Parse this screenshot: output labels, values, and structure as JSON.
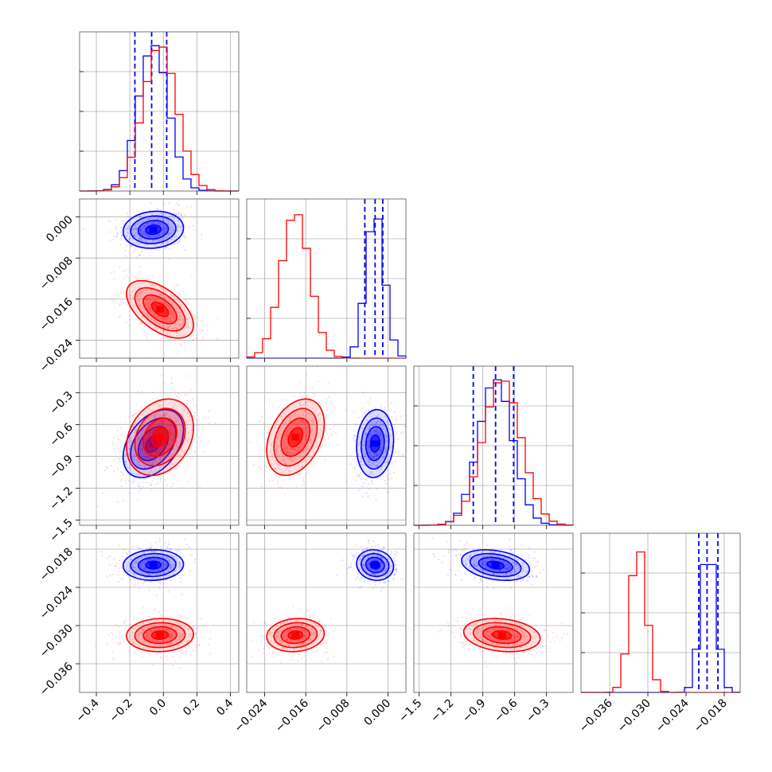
{
  "chart_data": {
    "type": "corner",
    "series": [
      {
        "name": "",
        "color": "#0000ff",
        "quantile_lines": true,
        "centers": [
          -0.06,
          -0.0025,
          -0.78,
          -0.0205
        ],
        "sigmas": [
          0.09,
          0.0018,
          0.16,
          0.0012
        ],
        "correlations": {
          "1-0": 0.1,
          "2-0": 0.4,
          "2-1": 0.1,
          "3-0": 0.05,
          "3-1": -0.1,
          "3-2": -0.3
        },
        "quantiles": [
          [
            -0.17,
            -0.07,
            0.02
          ],
          [
            -0.0045,
            -0.0025,
            -0.001
          ],
          [
            -0.99,
            -0.78,
            -0.61
          ],
          [
            -0.022,
            -0.0207,
            -0.019
          ]
        ]
      },
      {
        "name": "",
        "color": "#ff0000",
        "quantile_lines": false,
        "centers": [
          -0.02,
          -0.018,
          -0.72,
          -0.0315
        ],
        "sigmas": [
          0.1,
          0.0028,
          0.18,
          0.0013
        ],
        "correlations": {
          "1-0": -0.55,
          "2-0": 0.25,
          "2-1": 0.35,
          "3-0": 0.05,
          "3-1": 0.1,
          "3-2": -0.2
        }
      }
    ],
    "params": [
      {
        "range": [
          -0.5,
          0.45
        ],
        "ticks": [
          -0.4,
          -0.2,
          0.0,
          0.2,
          0.4
        ],
        "tick_labels": [
          "−0.4",
          "−0.2",
          "0.0",
          "0.2",
          "0.4"
        ]
      },
      {
        "range": [
          -0.0275,
          0.0035
        ],
        "ticks": [
          -0.024,
          -0.016,
          -0.008,
          0.0
        ],
        "tick_labels": [
          "−0.024",
          "−0.016",
          "−0.008",
          "0.000"
        ]
      },
      {
        "range": [
          -1.55,
          -0.05
        ],
        "ticks": [
          -1.5,
          -1.2,
          -0.9,
          -0.6,
          -0.3
        ],
        "tick_labels": [
          "−1.5",
          "−1.2",
          "−0.9",
          "−0.6",
          "−0.3"
        ]
      },
      {
        "range": [
          -0.0405,
          -0.0155
        ],
        "ticks": [
          -0.036,
          -0.03,
          -0.024,
          -0.018
        ],
        "tick_labels": [
          "−0.036",
          "−0.030",
          "−0.024",
          "−0.018"
        ]
      }
    ],
    "grid": true,
    "contour_levels_sigma": [
      0.5,
      1.0,
      1.5,
      2.0
    ]
  }
}
